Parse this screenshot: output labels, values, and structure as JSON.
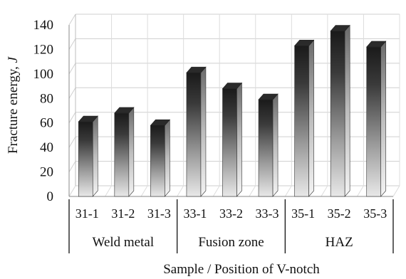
{
  "chart_data": {
    "type": "bar",
    "ylabel_main": "Fracture energy, ",
    "ylabel_unit": "J",
    "xlabel": "Sample / Position of V-notch",
    "ylim": [
      0,
      140
    ],
    "yticks": [
      0,
      20,
      40,
      60,
      80,
      100,
      120,
      140
    ],
    "categories": [
      "31-1",
      "31-2",
      "31-3",
      "33-1",
      "33-2",
      "33-3",
      "35-1",
      "35-2",
      "35-3"
    ],
    "groups": [
      {
        "label": "Weld metal",
        "members": [
          "31-1",
          "31-2",
          "31-3"
        ]
      },
      {
        "label": "Fusion zone",
        "members": [
          "33-1",
          "33-2",
          "33-3"
        ]
      },
      {
        "label": "HAZ",
        "members": [
          "35-1",
          "35-2",
          "35-3"
        ]
      }
    ],
    "values": [
      61,
      68,
      58,
      101,
      88,
      79,
      123,
      135,
      122
    ],
    "grid": true,
    "style": "3d-gradient-bars"
  }
}
